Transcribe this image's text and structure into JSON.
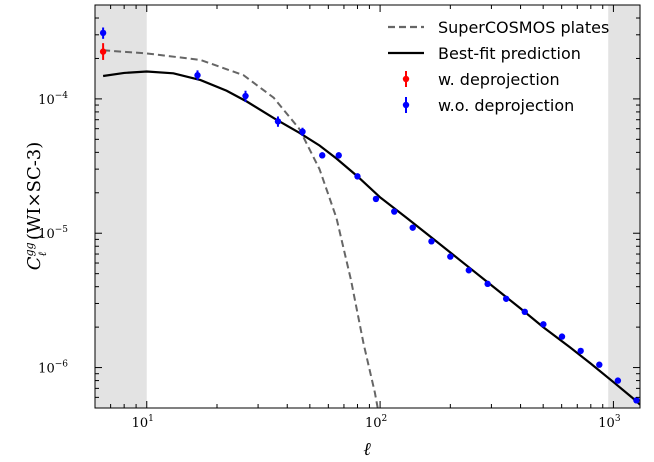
{
  "chart_data": {
    "type": "scatter",
    "xscale": "log",
    "yscale": "log",
    "xlim": [
      6,
      1300
    ],
    "ylim": [
      5e-07,
      0.0005
    ],
    "xlabel": "ℓ",
    "ylabel": {
      "prefix": "C",
      "superscript": "gg",
      "subscript": "ℓ",
      "suffix": " (WI×SC-3)"
    },
    "x_ticks": [
      {
        "base": "10",
        "exp": "1",
        "value": 10
      },
      {
        "base": "10",
        "exp": "2",
        "value": 100
      },
      {
        "base": "10",
        "exp": "3",
        "value": 1000
      }
    ],
    "y_ticks": [
      {
        "base": "10",
        "exp": "−4",
        "value": 0.0001
      },
      {
        "base": "10",
        "exp": "−5",
        "value": 1e-05
      },
      {
        "base": "10",
        "exp": "−6",
        "value": 1e-06
      }
    ],
    "shaded_regions": [
      {
        "x": [
          6,
          10
        ]
      },
      {
        "x": [
          950,
          1300
        ]
      }
    ],
    "series": [
      {
        "name": "SuperCOSMOS plates",
        "kind": "line",
        "style": "dashed",
        "color": "#666666",
        "x": [
          6.5,
          10,
          17,
          26,
          35,
          45,
          55,
          65,
          75,
          85,
          95,
          100
        ],
        "y": [
          0.00023,
          0.000218,
          0.000195,
          0.00015,
          0.000102,
          6e-05,
          3e-05,
          1.3e-05,
          4.5e-06,
          1.5e-06,
          6.5e-07,
          4e-07
        ]
      },
      {
        "name": "Best-fit prediction",
        "kind": "line",
        "style": "solid",
        "color": "#000000",
        "x": [
          6.5,
          8,
          10,
          13,
          17,
          22,
          27,
          35,
          45,
          55,
          65,
          80,
          100,
          130,
          170,
          220,
          300,
          400,
          500,
          650,
          800,
          1000,
          1200,
          1300
        ],
        "y": [
          0.000148,
          0.000156,
          0.00016,
          0.000155,
          0.000138,
          0.000115,
          9.5e-05,
          7.2e-05,
          5.6e-05,
          4.5e-05,
          3.6e-05,
          2.65e-05,
          1.85e-05,
          1.3e-05,
          9e-06,
          6.3e-06,
          4.1e-06,
          2.75e-06,
          2e-06,
          1.42e-06,
          1.07e-06,
          7.8e-07,
          6e-07,
          5.3e-07
        ]
      },
      {
        "name": "w. deprojection",
        "kind": "errorbar",
        "color": "#ff0000",
        "x": [
          6.5
        ],
        "y": [
          0.000225
        ],
        "yerr_low": [
          0.000195
        ],
        "yerr_high": [
          0.00026
        ]
      },
      {
        "name": "w.o. deprojection",
        "kind": "errorbar",
        "color": "#0000ff",
        "x": [
          6.5,
          16.5,
          26.5,
          36.5,
          46.5,
          56.5,
          66.5,
          80,
          96,
          115,
          138,
          166,
          200,
          240,
          289,
          347,
          417,
          501,
          602,
          724,
          870,
          1045,
          1255
        ],
        "y": [
          0.00031,
          0.00015,
          0.000105,
          6.8e-05,
          5.7e-05,
          3.8e-05,
          3.8e-05,
          2.65e-05,
          1.8e-05,
          1.45e-05,
          1.1e-05,
          8.7e-06,
          6.7e-06,
          5.3e-06,
          4.2e-06,
          3.25e-06,
          2.6e-06,
          2.1e-06,
          1.7e-06,
          1.33e-06,
          1.05e-06,
          8e-07,
          5.7e-07
        ],
        "yerr_low": [
          0.00028,
          0.000138,
          9.5e-05,
          6.2e-05,
          5.3e-05,
          3.6e-05,
          3.6e-05,
          2.55e-05,
          1.74e-05,
          1.4e-05,
          1.07e-05,
          8.5e-06,
          6.55e-06,
          5.2e-06,
          4.12e-06,
          3.19e-06,
          2.56e-06,
          2.07e-06,
          1.68e-06,
          1.31e-06,
          1.035e-06,
          7.9e-07,
          5.6e-07
        ],
        "yerr_high": [
          0.00034,
          0.000163,
          0.000115,
          7.4e-05,
          6.1e-05,
          4e-05,
          4e-05,
          2.75e-05,
          1.86e-05,
          1.5e-05,
          1.13e-05,
          8.9e-06,
          6.85e-06,
          5.4e-06,
          4.28e-06,
          3.31e-06,
          2.64e-06,
          2.13e-06,
          1.72e-06,
          1.35e-06,
          1.065e-06,
          8.1e-07,
          5.8e-07
        ]
      }
    ],
    "legend": {
      "position": "top-right",
      "entries": [
        "SuperCOSMOS plates",
        "Best-fit prediction",
        "w. deprojection",
        "w.o. deprojection"
      ]
    }
  }
}
